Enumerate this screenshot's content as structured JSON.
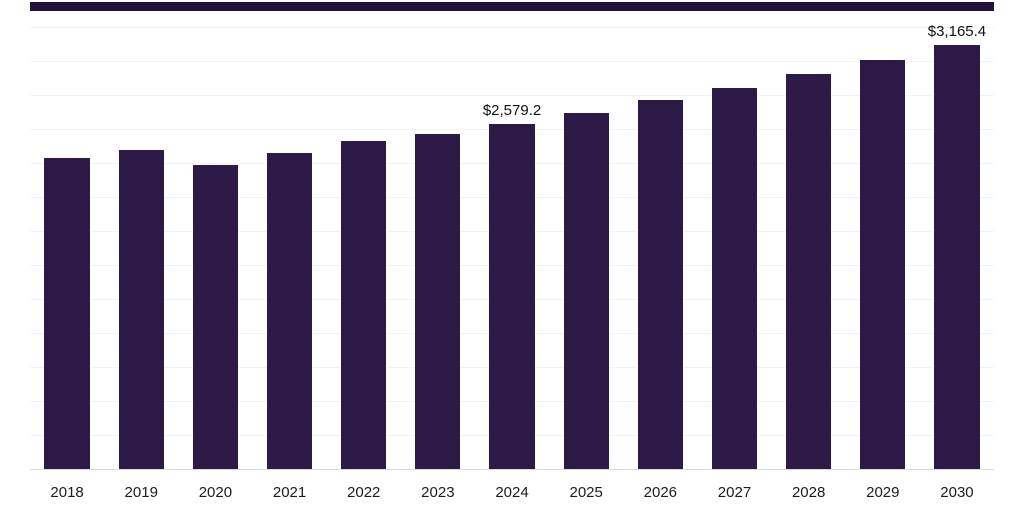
{
  "chart_data": {
    "type": "bar",
    "title": "",
    "xlabel": "",
    "ylabel": "",
    "categories": [
      "2018",
      "2019",
      "2020",
      "2021",
      "2022",
      "2023",
      "2024",
      "2025",
      "2026",
      "2027",
      "2028",
      "2029",
      "2030"
    ],
    "values": [
      2325,
      2385,
      2270,
      2360,
      2450,
      2505,
      2579.2,
      2660,
      2755,
      2845,
      2950,
      3055,
      3165.4
    ],
    "data_labels": [
      "",
      "",
      "",
      "",
      "",
      "",
      "$2,579.2",
      "",
      "",
      "",
      "",
      "",
      "$3,165.4"
    ],
    "ylim": [
      0,
      3420
    ],
    "grid": "horizontal-faint",
    "legend": "none",
    "bar_color": "#2E1A47",
    "top_bar_color": "#211238",
    "axis_line_color": "#d9d9d9"
  }
}
